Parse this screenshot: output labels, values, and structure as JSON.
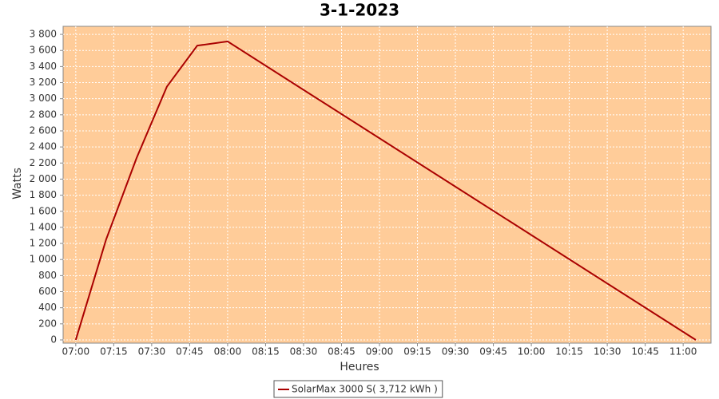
{
  "chart_data": {
    "type": "line",
    "title": "3-1-2023",
    "x_label": "Heures",
    "y_label": "Watts",
    "x": [
      "07:00",
      "07:12",
      "07:24",
      "07:36",
      "07:48",
      "08:00",
      "11:05"
    ],
    "series": [
      {
        "name": "SolarMax 3000 S( 3,712 kWh )",
        "color": "#aa0000",
        "values": [
          0,
          1250,
          2260,
          3150,
          3660,
          3712,
          0
        ]
      }
    ],
    "xlim": [
      "06:55",
      "11:11"
    ],
    "xticks": [
      "07:00",
      "07:15",
      "07:30",
      "07:45",
      "08:00",
      "08:15",
      "08:30",
      "08:45",
      "09:00",
      "09:15",
      "09:30",
      "09:45",
      "10:00",
      "10:15",
      "10:30",
      "10:45",
      "11:00"
    ],
    "ylim": [
      -40,
      3900
    ],
    "yticks": [
      0,
      200,
      400,
      600,
      800,
      {
        "value": 1000,
        "label": "1 000"
      },
      {
        "value": 1200,
        "label": "1 200"
      },
      {
        "value": 1400,
        "label": "1 400"
      },
      {
        "value": 1600,
        "label": "1 600"
      },
      {
        "value": 1800,
        "label": "1 800"
      },
      {
        "value": 2000,
        "label": "2 000"
      },
      {
        "value": 2200,
        "label": "2 200"
      },
      {
        "value": 2400,
        "label": "2 400"
      },
      {
        "value": 2600,
        "label": "2 600"
      },
      {
        "value": 2800,
        "label": "2 800"
      },
      {
        "value": 3000,
        "label": "3 000"
      },
      {
        "value": 3200,
        "label": "3 200"
      },
      {
        "value": 3400,
        "label": "3 400"
      },
      {
        "value": 3600,
        "label": "3 600"
      },
      {
        "value": 3800,
        "label": "3 800"
      }
    ],
    "grid": true,
    "plot_background": "#ffcc99",
    "legend_position": "bottom"
  }
}
